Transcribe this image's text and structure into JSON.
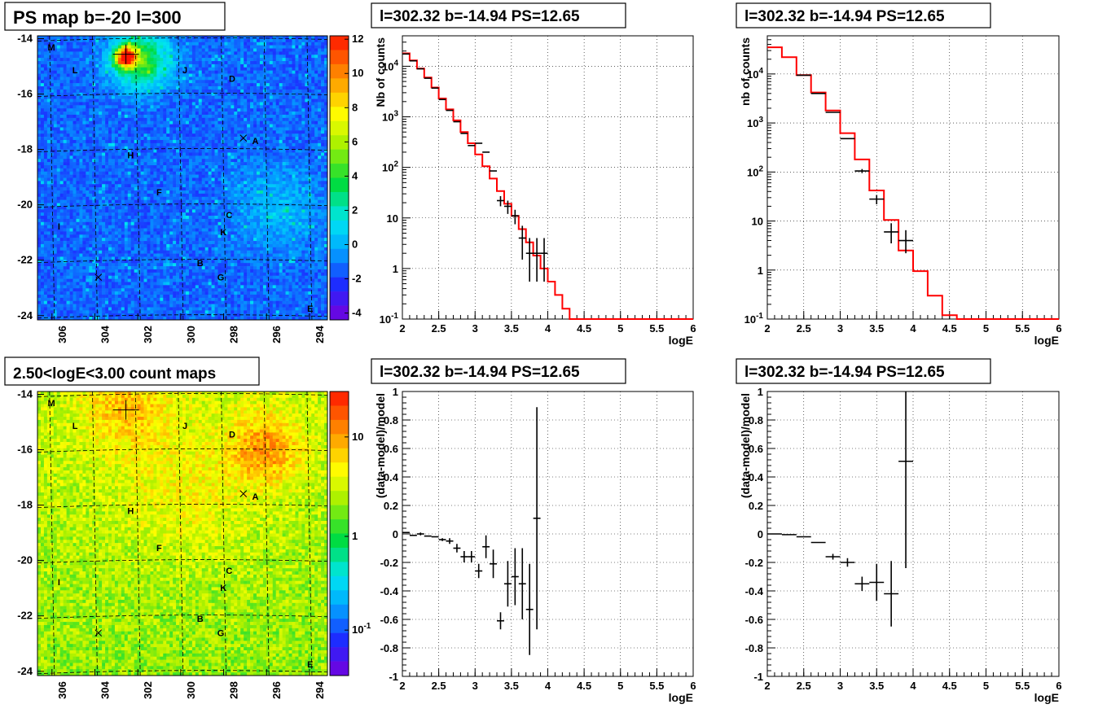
{
  "chart_data": [
    {
      "type": "heatmap",
      "title": "PS map b=-20 l=300",
      "x_ticks": [
        "306",
        "304",
        "302",
        "300",
        "298",
        "296",
        "294"
      ],
      "y_ticks": [
        "-14",
        "-16",
        "-18",
        "-20",
        "-22",
        "-24"
      ],
      "color_scale": "linear",
      "colorbar_ticks": [
        "12",
        "10",
        "8",
        "6",
        "4",
        "2",
        "0",
        "-2",
        "-4"
      ],
      "zlim": [
        -5,
        12
      ],
      "sources": [
        "M",
        "L",
        "J",
        "D",
        "A",
        "H",
        "F",
        "I",
        "C",
        "K",
        "B",
        "G",
        "E"
      ]
    },
    {
      "type": "line",
      "title": "l=302.32 b=-14.94 PS=12.65",
      "xlabel": "logE",
      "ylabel": "Nb of counts",
      "xlim": [
        2,
        6
      ],
      "ylim": [
        0.1,
        40000
      ],
      "log_y": true,
      "x_ticks": [
        "2",
        "2.5",
        "3",
        "3.5",
        "4",
        "4.5",
        "5",
        "5.5",
        "6"
      ],
      "y_ticks": [
        "10^{4}",
        "10^{3}",
        "10^{2}",
        "10",
        "1",
        "10^{-1}"
      ],
      "model_edges": [
        2.0,
        2.1,
        2.2,
        2.3,
        2.4,
        2.5,
        2.6,
        2.7,
        2.8,
        2.9,
        3.0,
        3.1,
        3.2,
        3.3,
        3.4,
        3.5,
        3.6,
        3.7,
        3.8,
        3.9,
        4.0,
        4.1,
        4.2,
        4.3,
        4.4,
        6.0
      ],
      "model_values": [
        18000,
        13000,
        9000,
        6000,
        3800,
        2300,
        1400,
        850,
        500,
        300,
        180,
        105,
        60,
        34,
        19,
        11,
        6,
        3.3,
        1.8,
        1.0,
        0.55,
        0.3,
        0.16,
        0.1,
        0.1
      ],
      "data_x": [
        2.05,
        2.15,
        2.25,
        2.35,
        2.45,
        2.55,
        2.65,
        2.75,
        2.85,
        2.95,
        3.05,
        3.15,
        3.25,
        3.35,
        3.45,
        3.55,
        3.65,
        3.75,
        3.85,
        3.95
      ],
      "data_y": [
        17500,
        12800,
        8900,
        5800,
        3700,
        2200,
        1340,
        800,
        470,
        270,
        300,
        200,
        85,
        22,
        17,
        11,
        4,
        2,
        2,
        2
      ],
      "data_err_lo": [
        0,
        0,
        0,
        0,
        0,
        0,
        0,
        0,
        0,
        0,
        0,
        0,
        0,
        5,
        5,
        3.5,
        2.5,
        1.45,
        1.45,
        1.45
      ],
      "data_err_hi": [
        0,
        0,
        0,
        0,
        0,
        0,
        0,
        0,
        0,
        0,
        0,
        0,
        0,
        5,
        5,
        3.5,
        3,
        2,
        2,
        2
      ]
    },
    {
      "type": "line",
      "title": "l=302.32 b=-14.94 PS=12.65",
      "xlabel": "logE",
      "ylabel": "nb of counts",
      "xlim": [
        2,
        6
      ],
      "ylim": [
        0.1,
        60000
      ],
      "log_y": true,
      "x_ticks": [
        "2",
        "2.5",
        "3",
        "3.5",
        "4",
        "4.5",
        "5",
        "5.5",
        "6"
      ],
      "y_ticks": [
        "10^{4}",
        "10^{3}",
        "10^{2}",
        "10",
        "1",
        "10^{-1}"
      ],
      "model_edges": [
        2.0,
        2.2,
        2.4,
        2.6,
        2.8,
        3.0,
        3.2,
        3.4,
        3.6,
        3.8,
        4.0,
        4.2,
        4.4,
        4.6,
        6.0
      ],
      "model_values": [
        35000,
        22000,
        9500,
        4200,
        1800,
        620,
        180,
        42,
        10.5,
        2.5,
        0.95,
        0.3,
        0.12,
        0.1
      ],
      "data_x": [
        2.5,
        2.7,
        2.9,
        3.1,
        3.3,
        3.5,
        3.7,
        3.9
      ],
      "data_y": [
        9400,
        4000,
        1650,
        480,
        105,
        28,
        6,
        4
      ],
      "data_err_lo": [
        0,
        0,
        0,
        0,
        10,
        6,
        2.5,
        1.8
      ],
      "data_err_hi": [
        0,
        0,
        0,
        0,
        10,
        6,
        3,
        2.5
      ]
    },
    {
      "type": "heatmap",
      "title": "2.50<logE<3.00 count maps",
      "x_ticks": [
        "306",
        "304",
        "302",
        "300",
        "298",
        "296",
        "294"
      ],
      "y_ticks": [
        "-14",
        "-16",
        "-18",
        "-20",
        "-22",
        "-24"
      ],
      "color_scale": "log",
      "colorbar_ticks": [
        "10",
        "1",
        "10^{-1}"
      ],
      "zlim": [
        0.05,
        40
      ],
      "sources": [
        "M",
        "L",
        "J",
        "D",
        "A",
        "H",
        "F",
        "I",
        "C",
        "K",
        "B",
        "G",
        "E"
      ]
    },
    {
      "type": "scatter",
      "title": "l=302.32 b=-14.94 PS=12.65",
      "xlabel": "logE",
      "ylabel": "(data-model)/model",
      "xlim": [
        2,
        6
      ],
      "ylim": [
        -1,
        1
      ],
      "x_ticks": [
        "2",
        "2.5",
        "3",
        "3.5",
        "4",
        "4.5",
        "5",
        "5.5",
        "6"
      ],
      "y_ticks": [
        "1",
        "0.8",
        "0.6",
        "0.4",
        "0.2",
        "0",
        "-0.2",
        "-0.4",
        "-0.6",
        "-0.8",
        "-1"
      ],
      "x": [
        2.05,
        2.15,
        2.25,
        2.35,
        2.45,
        2.55,
        2.65,
        2.75,
        2.85,
        2.95,
        3.05,
        3.15,
        3.25,
        3.35,
        3.45,
        3.55,
        3.65,
        3.75,
        3.85
      ],
      "y": [
        0.01,
        -0.01,
        0.0,
        -0.015,
        -0.02,
        -0.04,
        -0.05,
        -0.1,
        -0.16,
        -0.16,
        -0.26,
        -0.09,
        -0.21,
        -0.61,
        -0.35,
        -0.3,
        -0.35,
        -0.53,
        0.11
      ],
      "err": [
        0,
        0,
        0.01,
        0,
        0,
        0.01,
        0.02,
        0.03,
        0.04,
        0.04,
        0.05,
        0.08,
        0.1,
        0.06,
        0.16,
        0.2,
        0.25,
        0.32,
        0.78
      ]
    },
    {
      "type": "scatter",
      "title": "l=302.32 b=-14.94 PS=12.65",
      "xlabel": "logE",
      "ylabel": "(data-model)/model",
      "xlim": [
        2,
        6
      ],
      "ylim": [
        -1,
        1
      ],
      "x_ticks": [
        "2",
        "2.5",
        "3",
        "3.5",
        "4",
        "4.5",
        "5",
        "5.5",
        "6"
      ],
      "y_ticks": [
        "1",
        "0.8",
        "0.6",
        "0.4",
        "0.2",
        "0",
        "-0.2",
        "-0.4",
        "-0.6",
        "-0.8",
        "-1"
      ],
      "x": [
        2.1,
        2.3,
        2.5,
        2.7,
        2.9,
        3.1,
        3.3,
        3.5,
        3.7,
        3.9
      ],
      "y": [
        0.0,
        -0.005,
        -0.02,
        -0.06,
        -0.16,
        -0.2,
        -0.35,
        -0.34,
        -0.42,
        0.51
      ],
      "err": [
        0,
        0,
        0,
        0,
        0.02,
        0.03,
        0.05,
        0.13,
        0.23,
        0.75
      ]
    }
  ]
}
